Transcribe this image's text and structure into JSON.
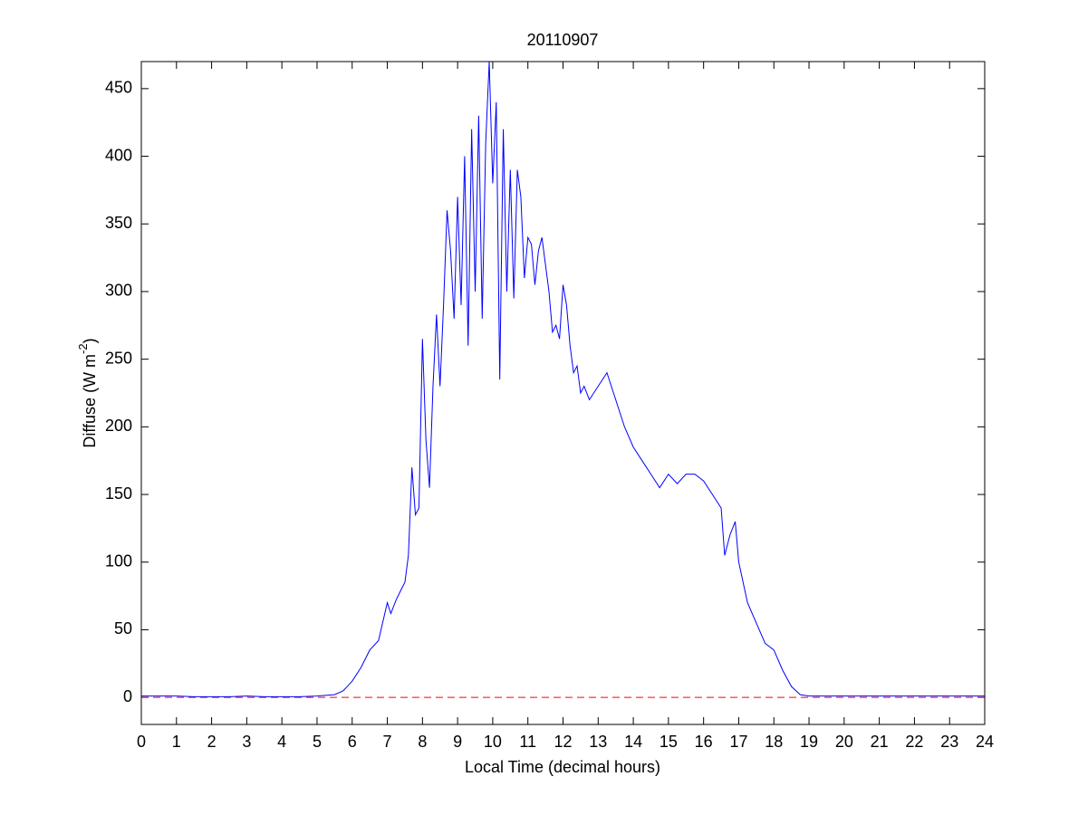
{
  "chart_data": {
    "type": "line",
    "title": "20110907",
    "xlabel": "Local Time (decimal hours)",
    "ylabel": [
      "Diffuse (W m",
      "-2",
      ")"
    ],
    "xlim": [
      0,
      24
    ],
    "ylim": [
      -20,
      470
    ],
    "xticks": [
      0,
      1,
      2,
      3,
      4,
      5,
      6,
      7,
      8,
      9,
      10,
      11,
      12,
      13,
      14,
      15,
      16,
      17,
      18,
      19,
      20,
      21,
      22,
      23,
      24
    ],
    "yticks": [
      0,
      50,
      100,
      150,
      200,
      250,
      300,
      350,
      400,
      450
    ],
    "reference_line": {
      "value": 0,
      "color": "#ff0000"
    },
    "series": [
      {
        "color": "#0000ff",
        "x": [
          0,
          0.5,
          1,
          1.5,
          2,
          2.5,
          3,
          3.5,
          4,
          4.5,
          5,
          5.5,
          5.75,
          6,
          6.25,
          6.5,
          6.75,
          7,
          7.1,
          7.25,
          7.4,
          7.5,
          7.6,
          7.7,
          7.8,
          7.9,
          8,
          8.1,
          8.2,
          8.3,
          8.4,
          8.5,
          8.6,
          8.7,
          8.8,
          8.9,
          9,
          9.1,
          9.2,
          9.3,
          9.4,
          9.5,
          9.6,
          9.7,
          9.8,
          9.9,
          10,
          10.1,
          10.2,
          10.3,
          10.4,
          10.5,
          10.6,
          10.7,
          10.8,
          10.9,
          11,
          11.1,
          11.2,
          11.3,
          11.4,
          11.5,
          11.6,
          11.7,
          11.8,
          11.9,
          12,
          12.1,
          12.2,
          12.3,
          12.4,
          12.5,
          12.6,
          12.75,
          13,
          13.25,
          13.5,
          13.75,
          14,
          14.25,
          14.5,
          14.75,
          15,
          15.25,
          15.5,
          15.75,
          16,
          16.25,
          16.5,
          16.6,
          16.75,
          16.9,
          17,
          17.25,
          17.5,
          17.75,
          18,
          18.25,
          18.5,
          18.75,
          19,
          19.5,
          20,
          21,
          22,
          23,
          24
        ],
        "values": [
          1,
          1,
          1,
          0.5,
          0.5,
          0.5,
          1,
          0.5,
          0.5,
          0.5,
          1,
          2,
          5,
          12,
          22,
          35,
          42,
          70,
          62,
          72,
          80,
          85,
          105,
          170,
          135,
          140,
          265,
          190,
          155,
          230,
          283,
          230,
          290,
          360,
          330,
          280,
          370,
          290,
          400,
          260,
          420,
          300,
          430,
          280,
          410,
          470,
          380,
          440,
          235,
          420,
          300,
          390,
          295,
          390,
          370,
          310,
          340,
          335,
          305,
          330,
          340,
          320,
          300,
          270,
          275,
          265,
          305,
          290,
          260,
          240,
          245,
          225,
          230,
          220,
          230,
          240,
          220,
          200,
          185,
          175,
          165,
          155,
          165,
          158,
          165,
          165,
          160,
          150,
          140,
          105,
          120,
          130,
          100,
          70,
          55,
          40,
          35,
          20,
          8,
          2,
          1,
          1,
          1,
          1,
          1,
          1,
          1
        ]
      }
    ]
  }
}
